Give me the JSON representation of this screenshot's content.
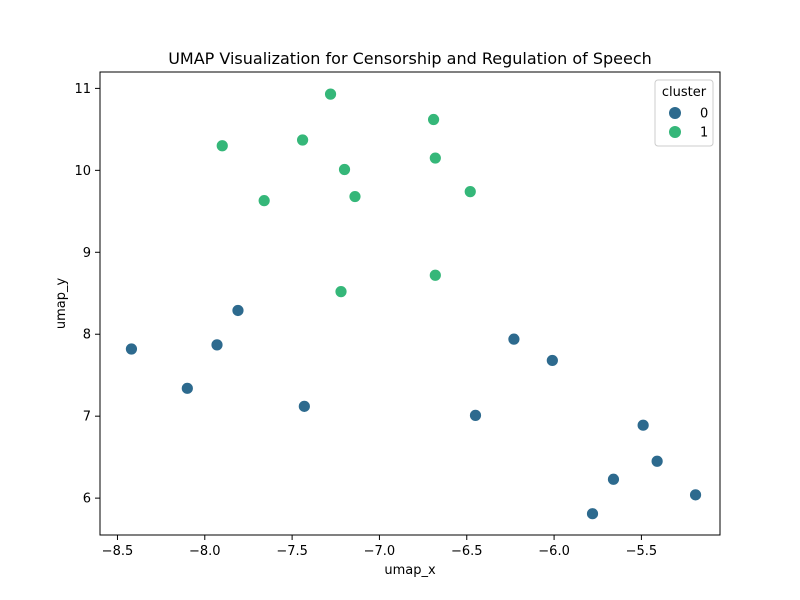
{
  "chart_data": {
    "type": "scatter",
    "title": "UMAP Visualization for Censorship and Regulation of Speech",
    "xlabel": "umap_x",
    "ylabel": "umap_y",
    "xlim": [
      -8.6,
      -5.05
    ],
    "ylim": [
      5.55,
      11.2
    ],
    "xticks": [
      -8.5,
      -8.0,
      -7.5,
      -7.0,
      -6.5,
      -6.0,
      -5.5
    ],
    "xtick_labels": [
      "−8.5",
      "−8.0",
      "−7.5",
      "−7.0",
      "−6.5",
      "−6.0",
      "−5.5"
    ],
    "yticks": [
      6,
      7,
      8,
      9,
      10,
      11
    ],
    "ytick_labels": [
      "6",
      "7",
      "8",
      "9",
      "10",
      "11"
    ],
    "grid": false,
    "legend": {
      "title": "cluster",
      "position": "top-right",
      "entries": [
        {
          "label": "0",
          "color": "#2d6a8e"
        },
        {
          "label": "1",
          "color": "#35b779"
        }
      ]
    },
    "series": [
      {
        "name": "0",
        "color": "#2d6a8e",
        "points": [
          {
            "x": -8.42,
            "y": 7.82
          },
          {
            "x": -8.1,
            "y": 7.34
          },
          {
            "x": -7.93,
            "y": 7.87
          },
          {
            "x": -7.81,
            "y": 8.29
          },
          {
            "x": -7.43,
            "y": 7.12
          },
          {
            "x": -6.45,
            "y": 7.01
          },
          {
            "x": -6.23,
            "y": 7.94
          },
          {
            "x": -6.01,
            "y": 7.68
          },
          {
            "x": -5.78,
            "y": 5.81
          },
          {
            "x": -5.66,
            "y": 6.23
          },
          {
            "x": -5.49,
            "y": 6.89
          },
          {
            "x": -5.41,
            "y": 6.45
          },
          {
            "x": -5.19,
            "y": 6.04
          }
        ]
      },
      {
        "name": "1",
        "color": "#35b779",
        "points": [
          {
            "x": -7.9,
            "y": 10.3
          },
          {
            "x": -7.66,
            "y": 9.63
          },
          {
            "x": -7.44,
            "y": 10.37
          },
          {
            "x": -7.28,
            "y": 10.93
          },
          {
            "x": -7.22,
            "y": 8.52
          },
          {
            "x": -7.2,
            "y": 10.01
          },
          {
            "x": -7.14,
            "y": 9.68
          },
          {
            "x": -6.69,
            "y": 10.62
          },
          {
            "x": -6.68,
            "y": 10.15
          },
          {
            "x": -6.68,
            "y": 8.72
          },
          {
            "x": -6.48,
            "y": 9.74
          }
        ]
      }
    ]
  }
}
